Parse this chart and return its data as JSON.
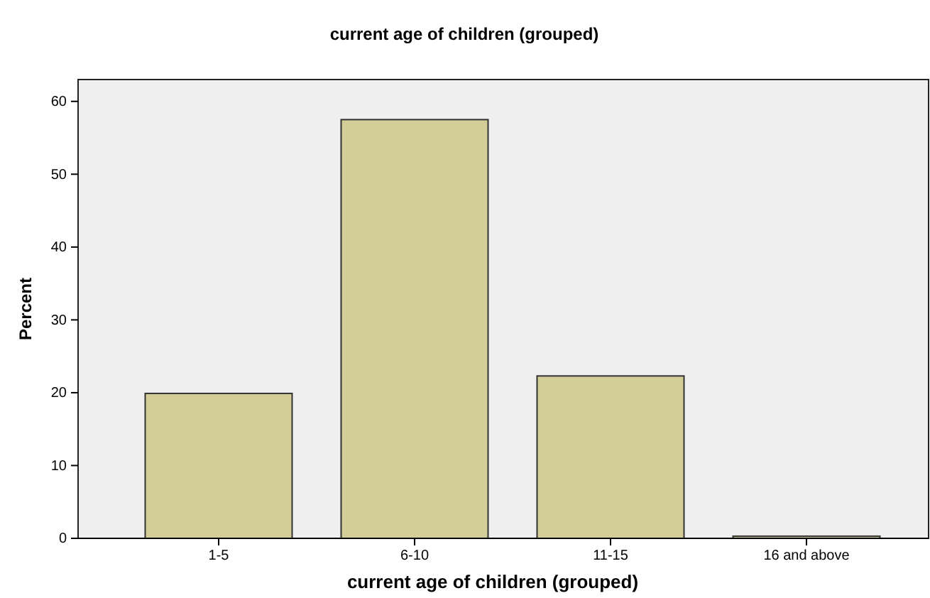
{
  "chart_data": {
    "type": "bar",
    "title": "current age of children (grouped)",
    "xlabel": "current age of children (grouped)",
    "ylabel": "Percent",
    "categories": [
      "1-5",
      "6-10",
      "11-15",
      "16 and above"
    ],
    "values": [
      19.9,
      57.5,
      22.3,
      0.3
    ],
    "color": "#d3ce97",
    "ylim": [
      0,
      63
    ],
    "yticks": [
      0,
      10,
      20,
      30,
      40,
      50,
      60
    ],
    "grid": false
  }
}
